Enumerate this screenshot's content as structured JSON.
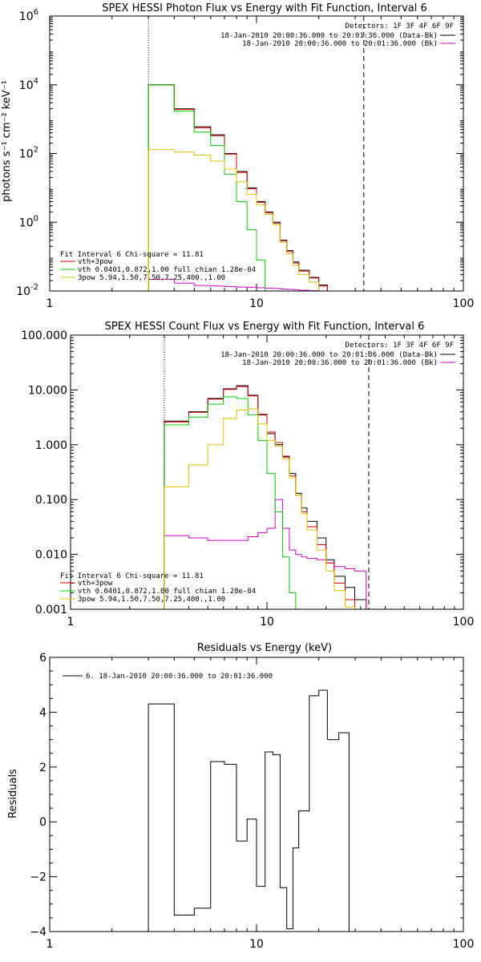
{
  "chart_data": [
    {
      "id": "photon",
      "type": "line",
      "title": "SPEX HESSI Photon Flux vs Energy with Fit Function, Interval 6",
      "xlabel": "",
      "ylabel": "photons s⁻¹ cm⁻² keV⁻¹",
      "xscale": "log",
      "yscale": "log",
      "xlim": [
        1,
        100
      ],
      "ylim": [
        0.01,
        1000000
      ],
      "x_ticks": [
        {
          "v": 1,
          "label": "1"
        },
        {
          "v": 10,
          "label": "10"
        },
        {
          "v": 100,
          "label": "100"
        }
      ],
      "y_ticks": [
        {
          "v": 0.01,
          "base": "10",
          "exp": "-2"
        },
        {
          "v": 1,
          "base": "10",
          "exp": "0"
        },
        {
          "v": 100,
          "base": "10",
          "exp": "2"
        },
        {
          "v": 10000,
          "base": "10",
          "exp": "4"
        },
        {
          "v": 1000000,
          "base": "10",
          "exp": "6"
        }
      ],
      "vlines": [
        {
          "x": 3,
          "style": "dotted"
        },
        {
          "x": 33,
          "style": "dashed"
        }
      ],
      "edges": [
        3,
        4,
        5,
        6,
        7,
        8,
        9,
        10,
        11,
        12,
        13,
        14,
        15,
        16,
        18,
        20,
        22,
        25,
        28,
        32
      ],
      "series": [
        {
          "key": "data",
          "color": "#000000",
          "values": [
            10000,
            2000,
            600,
            350,
            100,
            30,
            10,
            4,
            2,
            1,
            0.3,
            0.15,
            0.07,
            0.04,
            0.025,
            0.015
          ]
        },
        {
          "key": "bk",
          "color": "#cc00cc",
          "values": [
            0.022,
            0.017,
            0.0145,
            0.014,
            0.0135,
            0.013,
            0.0128,
            0.0125,
            0.012,
            0.0118,
            0.0115,
            0.0112,
            0.011,
            0.0105,
            0.0102,
            0.01,
            0.0098,
            0.0095,
            0.0093
          ]
        },
        {
          "key": "vth3pow",
          "color": "#dd0000",
          "values": [
            10000,
            1900,
            560,
            330,
            96,
            28,
            9.5,
            3.8,
            1.9,
            0.95,
            0.29,
            0.14,
            0.065,
            0.038,
            0.024,
            0.014
          ]
        },
        {
          "key": "vth",
          "color": "#00cc00",
          "values": [
            10000,
            1700,
            420,
            170,
            25,
            4,
            0.6,
            0.08,
            0.01
          ]
        },
        {
          "key": "3pow",
          "color": "#e0c000",
          "values": [
            130,
            110,
            90,
            60,
            35,
            15,
            6.5,
            3.2,
            1.7,
            0.85,
            0.26,
            0.12,
            0.055,
            0.03,
            0.018
          ]
        }
      ],
      "legend_top": [
        "Detectors: 1F 3F 4F 6F 9F",
        "18-Jan-2010 20:00:36.000 to 20:01:36.000 (Data-Bk)",
        "18-Jan-2010 20:00:36.000 to 20:01:36.000 (Bk)"
      ],
      "legend_top_colors": [
        "",
        "#000000",
        "#cc00cc"
      ],
      "legend_bottom": [
        "Fit Interval 6   Chi-square = 11.81",
        "vth+3pow",
        "vth 0.0401,0.872,1.00  full chian 1.28e-04",
        "3pow 5.94,1.50,7.50,7.25,400.,1.00"
      ],
      "legend_bottom_colors": [
        "",
        "#dd0000",
        "#00cc00",
        "#e0c000"
      ]
    },
    {
      "id": "count",
      "type": "line",
      "title": "SPEX HESSI Count Flux vs Energy with Fit Function, Interval 6",
      "xlabel": "",
      "ylabel": "",
      "xscale": "log",
      "yscale": "log",
      "xlim": [
        1,
        100
      ],
      "ylim": [
        0.001,
        100
      ],
      "x_ticks": [
        {
          "v": 1,
          "label": "1"
        },
        {
          "v": 10,
          "label": "10"
        },
        {
          "v": 100,
          "label": "100"
        }
      ],
      "y_ticks": [
        {
          "v": 0.001,
          "label": "0.001"
        },
        {
          "v": 0.01,
          "label": "0.010"
        },
        {
          "v": 0.1,
          "label": "0.100"
        },
        {
          "v": 1,
          "label": "1.000"
        },
        {
          "v": 10,
          "label": "10.000"
        },
        {
          "v": 100,
          "label": "100.000"
        }
      ],
      "vlines": [
        {
          "x": 3,
          "style": "dotted"
        },
        {
          "x": 33,
          "style": "dashed"
        }
      ],
      "edges": [
        3,
        4,
        5,
        6,
        7,
        8,
        9,
        10,
        11,
        12,
        13,
        14,
        15,
        16,
        18,
        20,
        22,
        25,
        28,
        32
      ],
      "series": [
        {
          "key": "data",
          "color": "#000000",
          "values": [
            2.7,
            4.0,
            7.0,
            10.5,
            12.0,
            8.0,
            3.5,
            1.6,
            1.0,
            0.6,
            0.3,
            0.13,
            0.07,
            0.04,
            0.02,
            0.008,
            0.004,
            0.0025,
            0.0015
          ]
        },
        {
          "key": "bk",
          "color": "#cc00cc",
          "values": [
            0.022,
            0.02,
            0.018,
            0.018,
            0.018,
            0.021,
            0.025,
            0.03,
            0.1,
            0.03,
            0.012,
            0.01,
            0.009,
            0.0085,
            0.008,
            0.007,
            0.006,
            0.0055,
            0.005
          ]
        },
        {
          "key": "vth3pow",
          "color": "#dd0000",
          "values": [
            2.6,
            3.9,
            6.8,
            10.2,
            11.5,
            7.8,
            3.6,
            1.7,
            1.1,
            0.62,
            0.27,
            0.12,
            0.06,
            0.032,
            0.015,
            0.007,
            0.003,
            0.0015,
            0.0009
          ]
        },
        {
          "key": "vth",
          "color": "#00cc00",
          "values": [
            2.3,
            3.2,
            5.5,
            7.5,
            7.0,
            3.5,
            1.2,
            0.3,
            0.06,
            0.009,
            0.002,
            0.0008
          ]
        },
        {
          "key": "3pow",
          "color": "#e0c000",
          "values": [
            0.17,
            0.43,
            1.0,
            3.0,
            4.3,
            4.5,
            2.4,
            1.2,
            0.95,
            0.55,
            0.25,
            0.12,
            0.055,
            0.028,
            0.012,
            0.005,
            0.0022,
            0.0011,
            0.0005
          ]
        }
      ],
      "legend_top": [
        "Detectors: 1F 3F 4F 6F 9F",
        "18-Jan-2010 20:00:36.000 to 20:01:36.000 (Data-Bk)",
        "18-Jan-2010 20:00:36.000 to 20:01:36.000 (Bk)"
      ],
      "legend_top_colors": [
        "",
        "#000000",
        "#cc00cc"
      ],
      "legend_bottom": [
        "Fit Interval 6   Chi-square = 11.81",
        "vth+3pow",
        "vth 0.0401,0.872,1.00  full chian 1.28e-04",
        "3pow 5.94,1.50,7.50,7.25,400.,1.00"
      ],
      "legend_bottom_colors": [
        "",
        "#dd0000",
        "#00cc00",
        "#e0c000"
      ]
    },
    {
      "id": "residuals",
      "type": "line",
      "title": "Residuals vs Energy (keV)",
      "xlabel": "",
      "ylabel": "Residuals",
      "xscale": "log",
      "yscale": "linear",
      "xlim": [
        1,
        100
      ],
      "ylim": [
        -4,
        6
      ],
      "x_ticks": [
        {
          "v": 1,
          "label": "1"
        },
        {
          "v": 10,
          "label": "10"
        },
        {
          "v": 100,
          "label": "100"
        }
      ],
      "y_ticks": [
        {
          "v": -4,
          "label": "−4"
        },
        {
          "v": -2,
          "label": "−2"
        },
        {
          "v": 0,
          "label": "0"
        },
        {
          "v": 2,
          "label": "2"
        },
        {
          "v": 4,
          "label": "4"
        },
        {
          "v": 6,
          "label": "6"
        }
      ],
      "vlines": [],
      "edges": [
        3,
        4,
        5,
        6,
        7,
        8,
        9,
        10,
        11,
        12,
        13,
        14,
        15,
        16,
        18,
        20,
        22,
        25,
        28,
        32
      ],
      "series": [
        {
          "key": "resid",
          "color": "#000000",
          "values": [
            4.3,
            -3.4,
            -3.15,
            2.2,
            2.1,
            -0.7,
            0.1,
            -2.35,
            2.55,
            2.45,
            -2.4,
            -3.9,
            -0.95,
            0.4,
            4.6,
            4.8,
            3.0,
            3.25
          ]
        }
      ],
      "legend_top": [
        "6. 18-Jan-2010 20:00:36.000 to 20:01:36.000"
      ],
      "legend_top_colors": [
        "#000000"
      ],
      "legend_bottom": [],
      "legend_bottom_colors": []
    }
  ]
}
